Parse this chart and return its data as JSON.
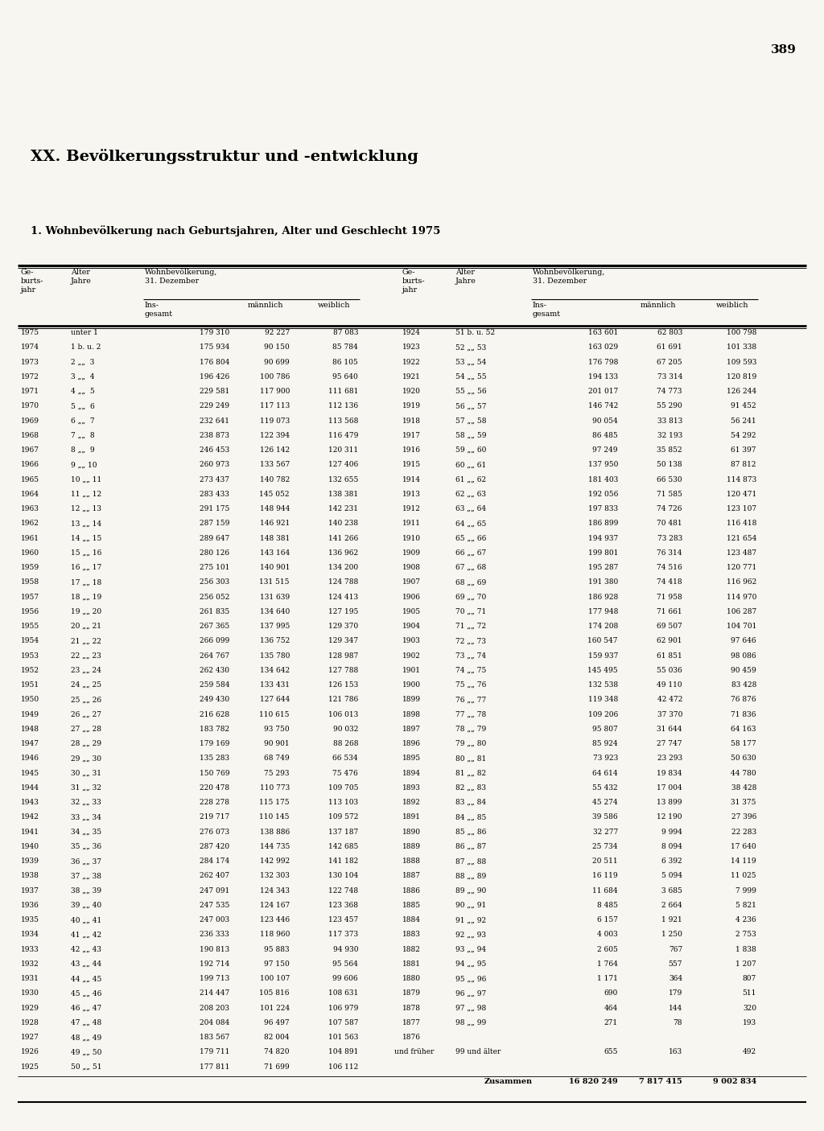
{
  "page_number": "389",
  "chapter_title": "XX. Bevölkerungsstruktur und -entwicklung",
  "table_title": "1. Wohnbevölkerung nach Geburtsjahren, Alter und Geschlecht 1975",
  "rows_left": [
    [
      "1975",
      "unter 1",
      "179 310",
      "92 227",
      "87 083"
    ],
    [
      "1974",
      "1 b. u. 2",
      "175 934",
      "90 150",
      "85 784"
    ],
    [
      "1973",
      "2 „„  3",
      "176 804",
      "90 699",
      "86 105"
    ],
    [
      "1972",
      "3 „„  4",
      "196 426",
      "100 786",
      "95 640"
    ],
    [
      "1971",
      "4 „„  5",
      "229 581",
      "117 900",
      "111 681"
    ],
    [
      "1970",
      "5 „„  6",
      "229 249",
      "117 113",
      "112 136"
    ],
    [
      "1969",
      "6 „„  7",
      "232 641",
      "119 073",
      "113 568"
    ],
    [
      "1968",
      "7 „„  8",
      "238 873",
      "122 394",
      "116 479"
    ],
    [
      "1967",
      "8 „„  9",
      "246 453",
      "126 142",
      "120 311"
    ],
    [
      "1966",
      "9 „„ 10",
      "260 973",
      "133 567",
      "127 406"
    ],
    [
      "1965",
      "10 „„ 11",
      "273 437",
      "140 782",
      "132 655"
    ],
    [
      "1964",
      "11 „„ 12",
      "283 433",
      "145 052",
      "138 381"
    ],
    [
      "1963",
      "12 „„ 13",
      "291 175",
      "148 944",
      "142 231"
    ],
    [
      "1962",
      "13 „„ 14",
      "287 159",
      "146 921",
      "140 238"
    ],
    [
      "1961",
      "14 „„ 15",
      "289 647",
      "148 381",
      "141 266"
    ],
    [
      "1960",
      "15 „„ 16",
      "280 126",
      "143 164",
      "136 962"
    ],
    [
      "1959",
      "16 „„ 17",
      "275 101",
      "140 901",
      "134 200"
    ],
    [
      "1958",
      "17 „„ 18",
      "256 303",
      "131 515",
      "124 788"
    ],
    [
      "1957",
      "18 „„ 19",
      "256 052",
      "131 639",
      "124 413"
    ],
    [
      "1956",
      "19 „„ 20",
      "261 835",
      "134 640",
      "127 195"
    ],
    [
      "1955",
      "20 „„ 21",
      "267 365",
      "137 995",
      "129 370"
    ],
    [
      "1954",
      "21 „„ 22",
      "266 099",
      "136 752",
      "129 347"
    ],
    [
      "1953",
      "22 „„ 23",
      "264 767",
      "135 780",
      "128 987"
    ],
    [
      "1952",
      "23 „„ 24",
      "262 430",
      "134 642",
      "127 788"
    ],
    [
      "1951",
      "24 „„ 25",
      "259 584",
      "133 431",
      "126 153"
    ],
    [
      "1950",
      "25 „„ 26",
      "249 430",
      "127 644",
      "121 786"
    ],
    [
      "1949",
      "26 „„ 27",
      "216 628",
      "110 615",
      "106 013"
    ],
    [
      "1948",
      "27 „„ 28",
      "183 782",
      "93 750",
      "90 032"
    ],
    [
      "1947",
      "28 „„ 29",
      "179 169",
      "90 901",
      "88 268"
    ],
    [
      "1946",
      "29 „„ 30",
      "135 283",
      "68 749",
      "66 534"
    ],
    [
      "1945",
      "30 „„ 31",
      "150 769",
      "75 293",
      "75 476"
    ],
    [
      "1944",
      "31 „„ 32",
      "220 478",
      "110 773",
      "109 705"
    ],
    [
      "1943",
      "32 „„ 33",
      "228 278",
      "115 175",
      "113 103"
    ],
    [
      "1942",
      "33 „„ 34",
      "219 717",
      "110 145",
      "109 572"
    ],
    [
      "1941",
      "34 „„ 35",
      "276 073",
      "138 886",
      "137 187"
    ],
    [
      "1940",
      "35 „„ 36",
      "287 420",
      "144 735",
      "142 685"
    ],
    [
      "1939",
      "36 „„ 37",
      "284 174",
      "142 992",
      "141 182"
    ],
    [
      "1938",
      "37 „„ 38",
      "262 407",
      "132 303",
      "130 104"
    ],
    [
      "1937",
      "38 „„ 39",
      "247 091",
      "124 343",
      "122 748"
    ],
    [
      "1936",
      "39 „„ 40",
      "247 535",
      "124 167",
      "123 368"
    ],
    [
      "1935",
      "40 „„ 41",
      "247 003",
      "123 446",
      "123 457"
    ],
    [
      "1934",
      "41 „„ 42",
      "236 333",
      "118 960",
      "117 373"
    ],
    [
      "1933",
      "42 „„ 43",
      "190 813",
      "95 883",
      "94 930"
    ],
    [
      "1932",
      "43 „„ 44",
      "192 714",
      "97 150",
      "95 564"
    ],
    [
      "1931",
      "44 „„ 45",
      "199 713",
      "100 107",
      "99 606"
    ],
    [
      "1930",
      "45 „„ 46",
      "214 447",
      "105 816",
      "108 631"
    ],
    [
      "1929",
      "46 „„ 47",
      "208 203",
      "101 224",
      "106 979"
    ],
    [
      "1928",
      "47 „„ 48",
      "204 084",
      "96 497",
      "107 587"
    ],
    [
      "1927",
      "48 „„ 49",
      "183 567",
      "82 004",
      "101 563"
    ],
    [
      "1926",
      "49 „„ 50",
      "179 711",
      "74 820",
      "104 891"
    ],
    [
      "1925",
      "50 „„ 51",
      "177 811",
      "71 699",
      "106 112"
    ]
  ],
  "rows_right": [
    [
      "1924",
      "51 b. u. 52",
      "163 601",
      "62 803",
      "100 798"
    ],
    [
      "1923",
      "52 „„ 53",
      "163 029",
      "61 691",
      "101 338"
    ],
    [
      "1922",
      "53 „„ 54",
      "176 798",
      "67 205",
      "109 593"
    ],
    [
      "1921",
      "54 „„ 55",
      "194 133",
      "73 314",
      "120 819"
    ],
    [
      "1920",
      "55 „„ 56",
      "201 017",
      "74 773",
      "126 244"
    ],
    [
      "1919",
      "56 „„ 57",
      "146 742",
      "55 290",
      "91 452"
    ],
    [
      "1918",
      "57 „„ 58",
      "90 054",
      "33 813",
      "56 241"
    ],
    [
      "1917",
      "58 „„ 59",
      "86 485",
      "32 193",
      "54 292"
    ],
    [
      "1916",
      "59 „„ 60",
      "97 249",
      "35 852",
      "61 397"
    ],
    [
      "1915",
      "60 „„ 61",
      "137 950",
      "50 138",
      "87 812"
    ],
    [
      "1914",
      "61 „„ 62",
      "181 403",
      "66 530",
      "114 873"
    ],
    [
      "1913",
      "62 „„ 63",
      "192 056",
      "71 585",
      "120 471"
    ],
    [
      "1912",
      "63 „„ 64",
      "197 833",
      "74 726",
      "123 107"
    ],
    [
      "1911",
      "64 „„ 65",
      "186 899",
      "70 481",
      "116 418"
    ],
    [
      "1910",
      "65 „„ 66",
      "194 937",
      "73 283",
      "121 654"
    ],
    [
      "1909",
      "66 „„ 67",
      "199 801",
      "76 314",
      "123 487"
    ],
    [
      "1908",
      "67 „„ 68",
      "195 287",
      "74 516",
      "120 771"
    ],
    [
      "1907",
      "68 „„ 69",
      "191 380",
      "74 418",
      "116 962"
    ],
    [
      "1906",
      "69 „„ 70",
      "186 928",
      "71 958",
      "114 970"
    ],
    [
      "1905",
      "70 „„ 71",
      "177 948",
      "71 661",
      "106 287"
    ],
    [
      "1904",
      "71 „„ 72",
      "174 208",
      "69 507",
      "104 701"
    ],
    [
      "1903",
      "72 „„ 73",
      "160 547",
      "62 901",
      "97 646"
    ],
    [
      "1902",
      "73 „„ 74",
      "159 937",
      "61 851",
      "98 086"
    ],
    [
      "1901",
      "74 „„ 75",
      "145 495",
      "55 036",
      "90 459"
    ],
    [
      "1900",
      "75 „„ 76",
      "132 538",
      "49 110",
      "83 428"
    ],
    [
      "1899",
      "76 „„ 77",
      "119 348",
      "42 472",
      "76 876"
    ],
    [
      "1898",
      "77 „„ 78",
      "109 206",
      "37 370",
      "71 836"
    ],
    [
      "1897",
      "78 „„ 79",
      "95 807",
      "31 644",
      "64 163"
    ],
    [
      "1896",
      "79 „„ 80",
      "85 924",
      "27 747",
      "58 177"
    ],
    [
      "1895",
      "80 „„ 81",
      "73 923",
      "23 293",
      "50 630"
    ],
    [
      "1894",
      "81 „„ 82",
      "64 614",
      "19 834",
      "44 780"
    ],
    [
      "1893",
      "82 „„ 83",
      "55 432",
      "17 004",
      "38 428"
    ],
    [
      "1892",
      "83 „„ 84",
      "45 274",
      "13 899",
      "31 375"
    ],
    [
      "1891",
      "84 „„ 85",
      "39 586",
      "12 190",
      "27 396"
    ],
    [
      "1890",
      "85 „„ 86",
      "32 277",
      "9 994",
      "22 283"
    ],
    [
      "1889",
      "86 „„ 87",
      "25 734",
      "8 094",
      "17 640"
    ],
    [
      "1888",
      "87 „„ 88",
      "20 511",
      "6 392",
      "14 119"
    ],
    [
      "1887",
      "88 „„ 89",
      "16 119",
      "5 094",
      "11 025"
    ],
    [
      "1886",
      "89 „„ 90",
      "11 684",
      "3 685",
      "7 999"
    ],
    [
      "1885",
      "90 „„ 91",
      "8 485",
      "2 664",
      "5 821"
    ],
    [
      "1884",
      "91 „„ 92",
      "6 157",
      "1 921",
      "4 236"
    ],
    [
      "1883",
      "92 „„ 93",
      "4 003",
      "1 250",
      "2 753"
    ],
    [
      "1882",
      "93 „„ 94",
      "2 605",
      "767",
      "1 838"
    ],
    [
      "1881",
      "94 „„ 95",
      "1 764",
      "557",
      "1 207"
    ],
    [
      "1880",
      "95 „„ 96",
      "1 171",
      "364",
      "807"
    ],
    [
      "1879",
      "96 „„ 97",
      "690",
      "179",
      "511"
    ],
    [
      "1878",
      "97 „„ 98",
      "464",
      "144",
      "320"
    ],
    [
      "1877",
      "98 „„ 99",
      "271",
      "78",
      "193"
    ],
    [
      "1876",
      "",
      "",
      "",
      ""
    ],
    [
      "und früher",
      "99 und älter",
      "655",
      "163",
      "492"
    ]
  ],
  "total_label": "Zusammen",
  "total_values": [
    "16 820 249",
    "7 817 415",
    "9 002 834"
  ],
  "bg_color": "#f7f6f0",
  "text_color": "#000000"
}
